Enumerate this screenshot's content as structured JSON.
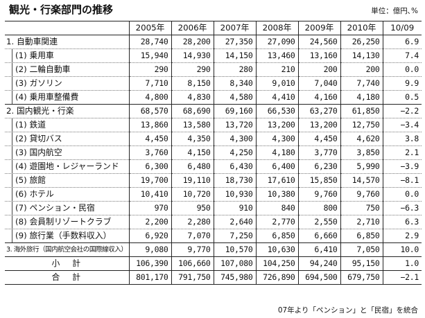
{
  "title": "観光・行楽部門の推移",
  "unit": "単位：億円､%",
  "note": "07年より「ペンション」と「民宿」を統合",
  "columns": [
    "",
    "2005年",
    "2006年",
    "2007年",
    "2008年",
    "2009年",
    "2010年",
    "10/09"
  ],
  "rows": [
    {
      "label": "1. 自動車関連",
      "values": [
        "28,740",
        "28,200",
        "27,350",
        "27,090",
        "24,560",
        "26,250",
        "6.9"
      ],
      "kind": "section"
    },
    {
      "label": "(1) 乗用車",
      "values": [
        "15,940",
        "14,930",
        "14,150",
        "13,460",
        "13,160",
        "14,130",
        "7.4"
      ],
      "kind": "sub"
    },
    {
      "label": "(2) 二輪自動車",
      "values": [
        "290",
        "290",
        "280",
        "210",
        "200",
        "200",
        "0.0"
      ],
      "kind": "sub"
    },
    {
      "label": "(3) ガソリン",
      "values": [
        "7,710",
        "8,150",
        "8,340",
        "9,010",
        "7,040",
        "7,740",
        "9.9"
      ],
      "kind": "sub"
    },
    {
      "label": "(4) 乗用車整備費",
      "values": [
        "4,800",
        "4,830",
        "4,580",
        "4,410",
        "4,160",
        "4,180",
        "0.5"
      ],
      "kind": "sub"
    },
    {
      "label": "2. 国内観光・行楽",
      "values": [
        "68,570",
        "68,690",
        "69,160",
        "66,530",
        "63,270",
        "61,850",
        "−2.2"
      ],
      "kind": "section"
    },
    {
      "label": "(1) 鉄道",
      "values": [
        "13,860",
        "13,580",
        "13,720",
        "13,200",
        "13,200",
        "12,750",
        "−3.4"
      ],
      "kind": "sub"
    },
    {
      "label": "(2) 貸切バス",
      "values": [
        "4,450",
        "4,350",
        "4,300",
        "4,300",
        "4,450",
        "4,620",
        "3.8"
      ],
      "kind": "sub"
    },
    {
      "label": "(3) 国内航空",
      "values": [
        "3,760",
        "4,150",
        "4,250",
        "4,180",
        "3,770",
        "3,850",
        "2.1"
      ],
      "kind": "sub"
    },
    {
      "label": "(4) 遊園地・レジャーランド",
      "values": [
        "6,300",
        "6,480",
        "6,430",
        "6,400",
        "6,230",
        "5,990",
        "−3.9"
      ],
      "kind": "sub"
    },
    {
      "label": "(5) 旅館",
      "values": [
        "19,700",
        "19,110",
        "18,730",
        "17,610",
        "15,850",
        "14,570",
        "−8.1"
      ],
      "kind": "sub"
    },
    {
      "label": "(6) ホテル",
      "values": [
        "10,410",
        "10,720",
        "10,930",
        "10,380",
        "9,760",
        "9,760",
        "0.0"
      ],
      "kind": "sub"
    },
    {
      "label": "(7) ペンション・民宿",
      "values": [
        "970",
        "950",
        "910",
        "840",
        "800",
        "750",
        "−6.3"
      ],
      "kind": "sub"
    },
    {
      "label": "(8) 会員制リゾートクラブ",
      "values": [
        "2,200",
        "2,280",
        "2,640",
        "2,770",
        "2,550",
        "2,710",
        "6.3"
      ],
      "kind": "sub"
    },
    {
      "label": "(9) 旅行業（手数料収入）",
      "values": [
        "6,920",
        "7,070",
        "7,250",
        "6,850",
        "6,660",
        "6,850",
        "2.9"
      ],
      "kind": "sub"
    },
    {
      "label": "3. 海外旅行（国内航空会社の国際線収入）",
      "values": [
        "9,080",
        "9,770",
        "10,570",
        "10,630",
        "6,410",
        "7,050",
        "10.0"
      ],
      "kind": "section-small"
    },
    {
      "label": "小計",
      "values": [
        "106,390",
        "106,660",
        "107,080",
        "104,250",
        "94,240",
        "95,150",
        "1.0"
      ],
      "kind": "subtotal"
    },
    {
      "label": "合計",
      "values": [
        "801,170",
        "791,750",
        "745,980",
        "726,890",
        "694,500",
        "679,750",
        "−2.1"
      ],
      "kind": "total"
    }
  ]
}
